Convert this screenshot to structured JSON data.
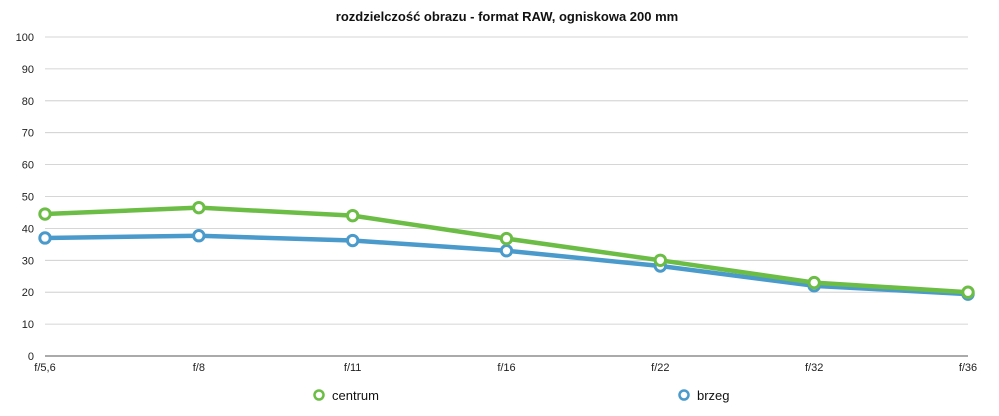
{
  "chart_data": {
    "type": "line",
    "title": "rozdzielczość obrazu - format RAW, ogniskowa 200 mm",
    "xlabel": "",
    "ylabel": "",
    "categories": [
      "f/5,6",
      "f/8",
      "f/11",
      "f/16",
      "f/22",
      "f/32",
      "f/36"
    ],
    "ylim": [
      0,
      100
    ],
    "yticks": [
      0,
      10,
      20,
      30,
      40,
      50,
      60,
      70,
      80,
      90,
      100
    ],
    "grid": true,
    "legend_position": "bottom",
    "series": [
      {
        "name": "centrum",
        "color": "#6cbd45",
        "values": [
          44.5,
          46.5,
          44,
          36.8,
          30,
          23,
          20
        ]
      },
      {
        "name": "brzeg",
        "color": "#4a9acb",
        "values": [
          37,
          37.7,
          36.2,
          33,
          28.2,
          22,
          19.4
        ]
      }
    ]
  }
}
